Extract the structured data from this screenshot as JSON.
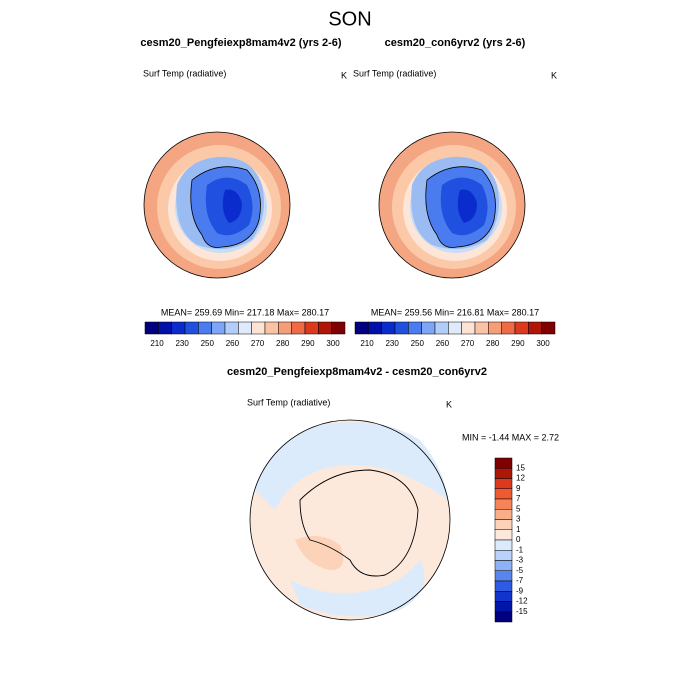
{
  "title": "SON",
  "panels": [
    {
      "title": "cesm20_Pengfeiexp8mam4v2 (yrs 2-6)",
      "variable": "Surf Temp (radiative)",
      "units": "K",
      "stats": "MEAN= 259.69  Min= 217.18  Max= 280.17"
    },
    {
      "title": "cesm20_con6yrv2 (yrs 2-6)",
      "variable": "Surf Temp (radiative)",
      "units": "K",
      "stats": "MEAN= 259.56  Min= 216.81  Max= 280.17"
    }
  ],
  "colorbar": {
    "labels": [
      "210",
      "230",
      "250",
      "260",
      "270",
      "280",
      "290",
      "300"
    ],
    "colors": [
      "#00007f",
      "#0010a8",
      "#0a2ccc",
      "#2050e0",
      "#4a7cf0",
      "#7fa6f6",
      "#b3cdfa",
      "#dfeafc",
      "#fde3d3",
      "#fbc3a6",
      "#f79e79",
      "#ef6a45",
      "#db3a1e",
      "#b01608",
      "#7f0000"
    ]
  },
  "difference": {
    "title": "cesm20_Pengfeiexp8mam4v2 - cesm20_con6yrv2",
    "variable": "Surf Temp (radiative)",
    "units": "K",
    "stats": "MIN =  -1.44 MAX =   2.72",
    "colorbar": {
      "labels": [
        "15",
        "12",
        "9",
        "7",
        "5",
        "3",
        "1",
        "0",
        "-1",
        "-3",
        "-5",
        "-7",
        "-9",
        "-12",
        "-15"
      ],
      "colors": [
        "#7f0000",
        "#b01608",
        "#db3a1e",
        "#ef5a30",
        "#f58458",
        "#f9ad88",
        "#fcd2b8",
        "#fde8dc",
        "#dcebfb",
        "#b8d2fa",
        "#8cb1f5",
        "#5b85ee",
        "#2f5ae3",
        "#1034cc",
        "#0016a8",
        "#00007f"
      ]
    }
  }
}
